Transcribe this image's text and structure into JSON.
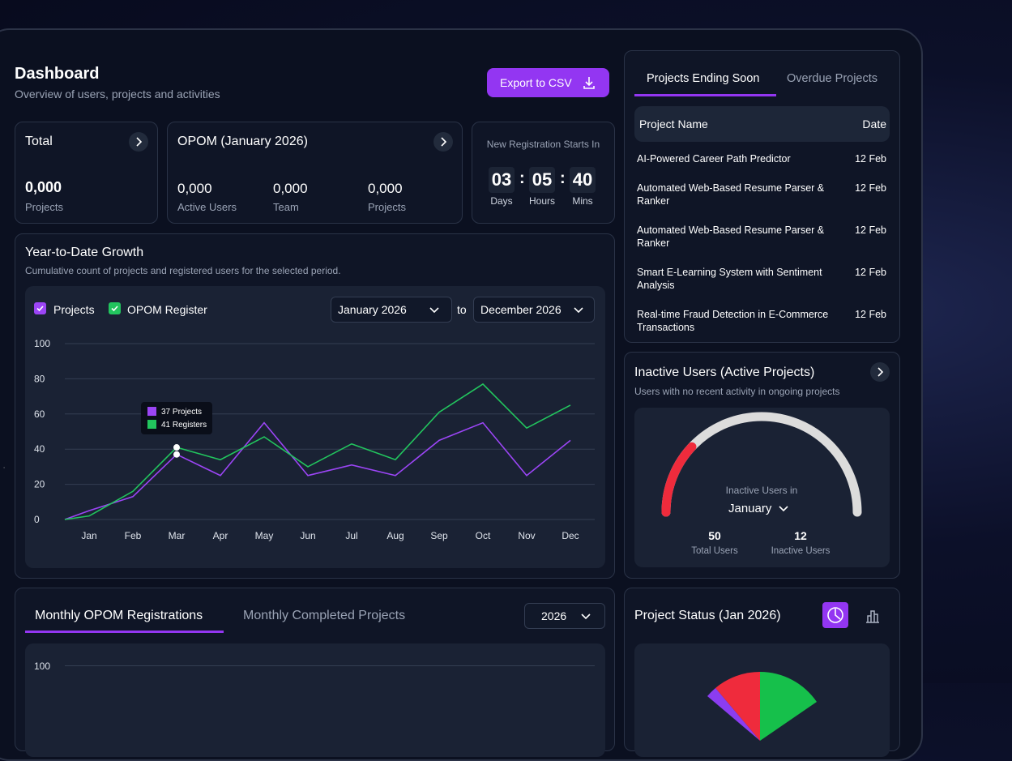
{
  "header": {
    "title": "Dashboard",
    "subtitle": "Overview of users, projects and activities",
    "export_button": "Export to CSV"
  },
  "total_card": {
    "title": "Total",
    "value": "0,000",
    "label": "Projects"
  },
  "opom_card": {
    "title": "OPOM (January 2026)",
    "stats": [
      {
        "value": "0,000",
        "label": "Active Users"
      },
      {
        "value": "0,000",
        "label": "Team"
      },
      {
        "value": "0,000",
        "label": "Projects"
      }
    ]
  },
  "countdown": {
    "title": "New Registration Starts In",
    "units": [
      {
        "value": "03",
        "label": "Days"
      },
      {
        "value": "05",
        "label": "Hours"
      },
      {
        "value": "40",
        "label": "Mins"
      }
    ]
  },
  "chart_data": {
    "type": "line",
    "title": "Year-to-Date Growth",
    "subtitle": "Cumulative count of projects and registered users for the selected period.",
    "range_from": "January 2026",
    "range_joiner": "to",
    "range_to": "December 2026",
    "categories": [
      null,
      "Jan",
      "Feb",
      "Mar",
      "Apr",
      "May",
      "Jun",
      "Jul",
      "Aug",
      "Sep",
      "Oct",
      "Nov",
      "Dec"
    ],
    "series": [
      {
        "name": "Projects",
        "color": "#9b45f5",
        "values": [
          0,
          5,
          13,
          37,
          25,
          55,
          25,
          31,
          25,
          45,
          55,
          25,
          45
        ]
      },
      {
        "name": "OPOM Register",
        "color": "#22c55e",
        "values": [
          0,
          2,
          16,
          41,
          34,
          47,
          30,
          43,
          34,
          61,
          77,
          52,
          65
        ]
      }
    ],
    "ylim": [
      0,
      100
    ],
    "yticks": [
      0,
      20,
      40,
      60,
      80,
      100
    ],
    "grid": true,
    "tooltip": {
      "index": 3,
      "lines": [
        "37 Projects",
        "41 Registers"
      ]
    }
  },
  "ending_soon": {
    "tabs": [
      "Projects Ending Soon",
      "Overdue Projects"
    ],
    "columns": [
      "Project Name",
      "Date"
    ],
    "rows": [
      [
        "AI-Powered Career Path Predictor",
        "12 Feb"
      ],
      [
        "Automated Web-Based Resume Parser & Ranker",
        "12 Feb"
      ],
      [
        "Automated Web-Based Resume Parser & Ranker",
        "12 Feb"
      ],
      [
        "Smart E-Learning System with Sentiment Analysis",
        "12 Feb"
      ],
      [
        "Real-time Fraud Detection in E-Commerce Transactions",
        "12 Feb"
      ]
    ]
  },
  "inactive_users": {
    "title": "Inactive Users (Active Projects)",
    "subtitle": "Users with no recent activity in ongoing projects",
    "gauge_label": "Inactive Users in",
    "month": "January",
    "total": {
      "value": 50,
      "label": "Total Users"
    },
    "inactive": {
      "value": 12,
      "label": "Inactive Users"
    }
  },
  "monthly": {
    "tabs": [
      "Monthly OPOM Registrations",
      "Monthly Completed Projects"
    ],
    "year": "2026",
    "y_tick": "100"
  },
  "project_status": {
    "title": "Project Status (Jan 2026)"
  }
}
